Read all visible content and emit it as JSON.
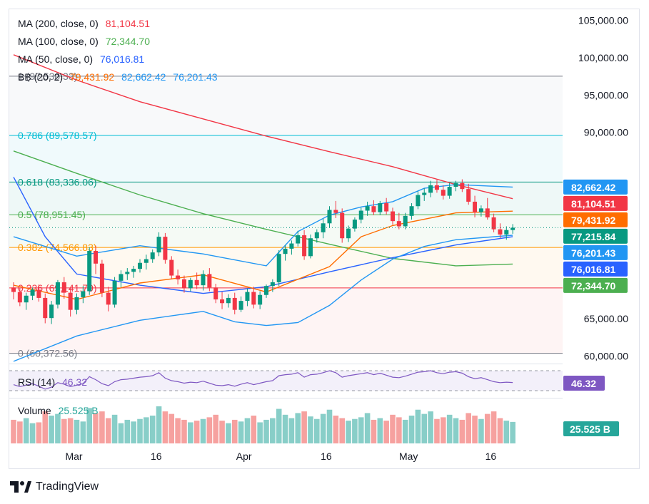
{
  "chart_data": {
    "type": "candlestick",
    "price_axis": {
      "ticks": [
        "105,000.00",
        "100,000.00",
        "95,000.00",
        "90,000.00",
        "65,000.00",
        "60,000.00"
      ],
      "tick_values": [
        105000,
        100000,
        95000,
        90000,
        65000,
        60000
      ],
      "ylim": [
        59000,
        106500
      ]
    },
    "time_axis": {
      "labels": [
        "Mar",
        "16",
        "Apr",
        "16",
        "May",
        "16"
      ],
      "range": [
        "2025-02-18",
        "2025-05-20"
      ],
      "label_dates": [
        "2025-03-01",
        "2025-03-16",
        "2025-04-01",
        "2025-04-16",
        "2025-05-01",
        "2025-05-16"
      ]
    },
    "legend": {
      "ma200": {
        "label": "MA (200, close, 0)",
        "value": "81,104.51",
        "color": "#f23645"
      },
      "ma100": {
        "label": "MA (100, close, 0)",
        "value": "72,344.70",
        "color": "#4caf50"
      },
      "ma50": {
        "label": "MA (50, close, 0)",
        "value": "76,016.81",
        "color": "#2962ff"
      },
      "bb": {
        "label": "BB (20, 2)",
        "values": [
          "79,431.92",
          "82,662.42",
          "76,201.43"
        ],
        "colors": [
          "#ff6d00",
          "#2196f3",
          "#2196f3"
        ]
      }
    },
    "fibonacci": [
      {
        "level": "1",
        "label": "1 (97,530.33)",
        "price": 97530.33,
        "color": "#787b86"
      },
      {
        "level": "0.786",
        "label": "0.786 (89,578.57)",
        "price": 89578.57,
        "color": "#00bcd4"
      },
      {
        "level": "0.618",
        "label": "0.618 (83,336.06)",
        "price": 83336.06,
        "color": "#089981"
      },
      {
        "level": "0.5",
        "label": "0.5 (78,951.45)",
        "price": 78951.45,
        "color": "#4caf50"
      },
      {
        "level": "0.382",
        "label": "0.382 (74,566.83)",
        "price": 74566.83,
        "color": "#ff9800"
      },
      {
        "level": "0.236",
        "label": "0.236 (69,141.79)",
        "price": 69141.79,
        "color": "#f23645"
      },
      {
        "level": "0",
        "label": "0 (60,372.56)",
        "price": 60372.56,
        "color": "#787b86"
      }
    ],
    "price_badges": [
      {
        "text": "82,662.42",
        "price": 82662.42,
        "color": "#2196f3"
      },
      {
        "text": "81,104.51",
        "price": 81104.51,
        "color": "#f23645"
      },
      {
        "text": "79,431.92",
        "price": 79431.92,
        "color": "#ff6d00"
      },
      {
        "text": "77,215.84",
        "price": 77215.84,
        "color": "#089981"
      },
      {
        "text": "76,201.43",
        "price": 76201.43,
        "color": "#2196f3"
      },
      {
        "text": "76,016.81",
        "price": 76016.81,
        "color": "#2962ff"
      },
      {
        "text": "72,344.70",
        "price": 72344.7,
        "color": "#4caf50"
      }
    ],
    "last_price": 77215.84,
    "candles_ohlc": [
      [
        69200,
        69900,
        67600,
        68600
      ],
      [
        68600,
        69100,
        66700,
        67200
      ],
      [
        67200,
        68500,
        66200,
        68100
      ],
      [
        68100,
        69200,
        67500,
        68900
      ],
      [
        68900,
        69600,
        67300,
        67800
      ],
      [
        67800,
        68400,
        64400,
        65100
      ],
      [
        65100,
        67400,
        64300,
        66900
      ],
      [
        66900,
        70200,
        66400,
        69900
      ],
      [
        69900,
        70600,
        67700,
        68500
      ],
      [
        68500,
        69200,
        65300,
        66200
      ],
      [
        66200,
        68400,
        65600,
        67900
      ],
      [
        67900,
        69400,
        67100,
        68700
      ],
      [
        68700,
        74600,
        68200,
        74100
      ],
      [
        74100,
        74800,
        71000,
        72400
      ],
      [
        72400,
        72900,
        67900,
        68500
      ],
      [
        68500,
        69300,
        66000,
        66900
      ],
      [
        66900,
        70600,
        66500,
        70100
      ],
      [
        70100,
        71500,
        69200,
        71000
      ],
      [
        71000,
        71800,
        70200,
        71300
      ],
      [
        71300,
        72100,
        70500,
        71700
      ],
      [
        71700,
        73000,
        71200,
        72500
      ],
      [
        72500,
        73600,
        71600,
        73000
      ],
      [
        73000,
        74300,
        72500,
        73900
      ],
      [
        73900,
        76600,
        73400,
        76000
      ],
      [
        76000,
        76500,
        72400,
        72900
      ],
      [
        72900,
        73400,
        70300,
        70800
      ],
      [
        70800,
        71600,
        69600,
        70300
      ],
      [
        70300,
        70800,
        68500,
        69100
      ],
      [
        69100,
        70500,
        68700,
        70200
      ],
      [
        70200,
        71200,
        69000,
        69500
      ],
      [
        69500,
        71500,
        68800,
        71000
      ],
      [
        71000,
        71800,
        68700,
        69200
      ],
      [
        69200,
        69700,
        67100,
        67600
      ],
      [
        67600,
        68600,
        66300,
        67100
      ],
      [
        67100,
        68300,
        66500,
        67800
      ],
      [
        67800,
        68500,
        65600,
        66200
      ],
      [
        66200,
        68000,
        65900,
        67400
      ],
      [
        67400,
        69100,
        66700,
        68600
      ],
      [
        68600,
        69300,
        66400,
        66900
      ],
      [
        66900,
        68700,
        66300,
        68200
      ],
      [
        68200,
        69600,
        67800,
        69400
      ],
      [
        69400,
        70300,
        68600,
        69900
      ],
      [
        69900,
        74200,
        69400,
        73700
      ],
      [
        73700,
        74900,
        72800,
        74400
      ],
      [
        74400,
        75500,
        73600,
        75100
      ],
      [
        75100,
        76800,
        74700,
        76200
      ],
      [
        76200,
        76900,
        72900,
        73400
      ],
      [
        73400,
        76300,
        73100,
        75800
      ],
      [
        75800,
        77000,
        75200,
        76600
      ],
      [
        76600,
        78400,
        75800,
        77800
      ],
      [
        77800,
        80100,
        77200,
        79600
      ],
      [
        79600,
        80800,
        78500,
        79200
      ],
      [
        79200,
        79800,
        75200,
        75800
      ],
      [
        75800,
        77500,
        75300,
        77100
      ],
      [
        77100,
        78600,
        76700,
        78300
      ],
      [
        78300,
        79900,
        77800,
        79500
      ],
      [
        79500,
        80700,
        78800,
        80100
      ],
      [
        80100,
        80900,
        78900,
        79300
      ],
      [
        79300,
        80800,
        78900,
        80500
      ],
      [
        80500,
        81200,
        79000,
        79400
      ],
      [
        79400,
        79900,
        77600,
        78100
      ],
      [
        78100,
        79200,
        77000,
        77400
      ],
      [
        77400,
        79200,
        77000,
        78800
      ],
      [
        78800,
        80500,
        78300,
        80100
      ],
      [
        80100,
        82100,
        79700,
        81600
      ],
      [
        81600,
        82500,
        80800,
        81900
      ],
      [
        81900,
        83500,
        81300,
        82900
      ],
      [
        82900,
        83600,
        81900,
        82300
      ],
      [
        82300,
        82900,
        81000,
        81500
      ],
      [
        81500,
        83200,
        81100,
        82700
      ],
      [
        82700,
        83500,
        82100,
        83200
      ],
      [
        83200,
        83700,
        82000,
        82400
      ],
      [
        82400,
        83100,
        80300,
        80700
      ],
      [
        80700,
        81500,
        78600,
        79300
      ],
      [
        79300,
        80200,
        78700,
        79800
      ],
      [
        79800,
        81200,
        78300,
        78600
      ],
      [
        78600,
        79100,
        76600,
        77000
      ],
      [
        77000,
        77800,
        75800,
        76300
      ],
      [
        76300,
        77400,
        75600,
        76900
      ],
      [
        76900,
        77700,
        76400,
        77215
      ]
    ],
    "series": [
      {
        "name": "MA (200, close, 0)",
        "color": "#f23645",
        "points": [
          [
            0,
            100400
          ],
          [
            10,
            97000
          ],
          [
            20,
            94100
          ],
          [
            30,
            91800
          ],
          [
            40,
            89500
          ],
          [
            50,
            87400
          ],
          [
            60,
            85400
          ],
          [
            70,
            83000
          ],
          [
            79,
            81104.51
          ]
        ]
      },
      {
        "name": "MA (100, close, 0)",
        "color": "#4caf50",
        "points": [
          [
            0,
            87500
          ],
          [
            10,
            84500
          ],
          [
            20,
            81600
          ],
          [
            30,
            79100
          ],
          [
            40,
            77000
          ],
          [
            50,
            75000
          ],
          [
            60,
            73100
          ],
          [
            70,
            72100
          ],
          [
            79,
            72344.7
          ]
        ]
      },
      {
        "name": "MA (50, close, 0)",
        "color": "#2962ff",
        "points": [
          [
            0,
            84000
          ],
          [
            5,
            76000
          ],
          [
            10,
            71000
          ],
          [
            20,
            69500
          ],
          [
            30,
            68400
          ],
          [
            40,
            69300
          ],
          [
            50,
            71300
          ],
          [
            60,
            73200
          ],
          [
            70,
            74900
          ],
          [
            79,
            76016.81
          ]
        ]
      },
      {
        "name": "BB basis",
        "color": "#ff6d00",
        "points": [
          [
            0,
            69500
          ],
          [
            10,
            67600
          ],
          [
            20,
            69800
          ],
          [
            30,
            70900
          ],
          [
            40,
            68600
          ],
          [
            50,
            72000
          ],
          [
            55,
            76000
          ],
          [
            60,
            77500
          ],
          [
            70,
            79200
          ],
          [
            79,
            79431.92
          ]
        ]
      },
      {
        "name": "BB upper",
        "color": "#2196f3",
        "points": [
          [
            0,
            76000
          ],
          [
            10,
            73400
          ],
          [
            20,
            74800
          ],
          [
            30,
            73700
          ],
          [
            40,
            72100
          ],
          [
            45,
            76700
          ],
          [
            50,
            78900
          ],
          [
            55,
            80000
          ],
          [
            60,
            80700
          ],
          [
            65,
            82500
          ],
          [
            70,
            83000
          ],
          [
            79,
            82662.42
          ]
        ]
      },
      {
        "name": "BB lower",
        "color": "#2196f3",
        "points": [
          [
            0,
            59300
          ],
          [
            10,
            62700
          ],
          [
            20,
            64800
          ],
          [
            30,
            66000
          ],
          [
            35,
            64600
          ],
          [
            40,
            64100
          ],
          [
            45,
            64500
          ],
          [
            50,
            66800
          ],
          [
            55,
            70200
          ],
          [
            60,
            73000
          ],
          [
            65,
            74700
          ],
          [
            70,
            75600
          ],
          [
            79,
            76201.43
          ]
        ]
      }
    ],
    "rsi": {
      "label": "RSI (14)",
      "value": "46.32",
      "color": "#7e57c2",
      "values": [
        42,
        38,
        41,
        44,
        39,
        33,
        37,
        46,
        43,
        38,
        41,
        44,
        58,
        52,
        44,
        40,
        48,
        52,
        53,
        55,
        57,
        58,
        60,
        66,
        55,
        50,
        48,
        45,
        47,
        46,
        49,
        45,
        41,
        40,
        42,
        39,
        43,
        46,
        42,
        45,
        48,
        50,
        60,
        62,
        63,
        66,
        57,
        62,
        63,
        66,
        70,
        66,
        57,
        60,
        62,
        64,
        66,
        62,
        65,
        61,
        57,
        56,
        59,
        63,
        67,
        68,
        70,
        66,
        64,
        67,
        68,
        65,
        58,
        54,
        56,
        52,
        48,
        46,
        47,
        46.32
      ]
    },
    "volume": {
      "label": "Volume",
      "value": "25.525 B",
      "up_color": "#26a69a",
      "down_color": "#ef5350",
      "values": [
        28,
        26,
        30,
        24,
        25,
        38,
        33,
        35,
        29,
        30,
        28,
        26,
        42,
        36,
        38,
        30,
        34,
        24,
        28,
        26,
        29,
        31,
        33,
        44,
        38,
        35,
        30,
        28,
        25,
        27,
        29,
        31,
        34,
        27,
        24,
        28,
        26,
        30,
        33,
        25,
        28,
        30,
        41,
        34,
        30,
        36,
        38,
        32,
        29,
        35,
        40,
        33,
        30,
        27,
        29,
        31,
        36,
        28,
        30,
        27,
        34,
        31,
        28,
        33,
        40,
        35,
        38,
        29,
        31,
        34,
        30,
        28,
        36,
        33,
        29,
        35,
        38,
        30,
        27,
        25.5
      ]
    }
  },
  "footer": {
    "brand": "TradingView"
  }
}
